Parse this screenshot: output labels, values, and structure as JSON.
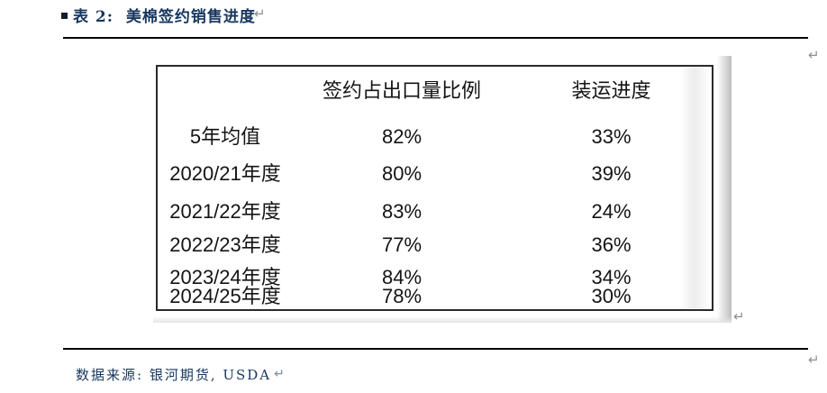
{
  "title": {
    "text": "表 2:  美棉签约销售进度"
  },
  "marks": {
    "glyph": "↵"
  },
  "table": {
    "headers": {
      "col1": "",
      "col2": "签约占出口量比例",
      "col3": "装运进度"
    },
    "rows": [
      {
        "label": "5年均值",
        "contract": "82%",
        "shipment": "33%"
      },
      {
        "label": "2020/21年度",
        "contract": "80%",
        "shipment": "39%"
      },
      {
        "label": "2021/22年度",
        "contract": "83%",
        "shipment": "24%"
      },
      {
        "label": "2022/23年度",
        "contract": "77%",
        "shipment": "36%"
      },
      {
        "label": "2023/24年度",
        "contract": "84%",
        "shipment": "34%"
      },
      {
        "label": "2024/25年度",
        "contract": "78%",
        "shipment": "30%"
      }
    ]
  },
  "footer": {
    "source": "数据来源: 银河期货, USDA"
  },
  "colors": {
    "accent_navy": "#17375e",
    "rule_black": "#000000",
    "table_border": "#2a2a2a",
    "mark_gray": "#8e8e8e"
  }
}
